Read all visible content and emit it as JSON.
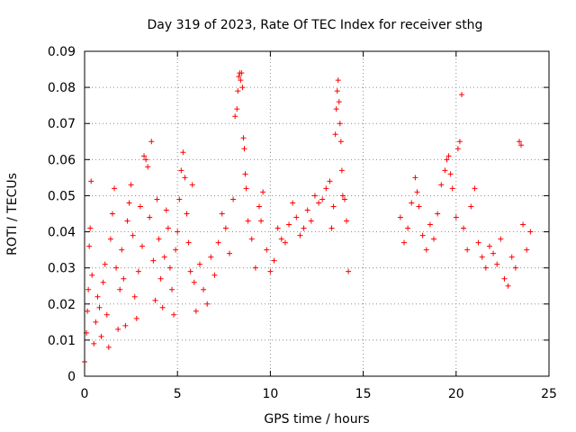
{
  "chart_data": {
    "type": "scatter",
    "title": "Day 319 of 2023, Rate Of TEC Index for receiver sthg",
    "xlabel": "GPS time / hours",
    "ylabel": "ROTI / TECUs",
    "xlim": [
      0,
      25
    ],
    "ylim": [
      0,
      0.09
    ],
    "x_ticks": [
      0,
      5,
      10,
      15,
      20,
      25
    ],
    "x_tick_labels": [
      "0",
      "5",
      "10",
      "15",
      "20",
      "25"
    ],
    "y_ticks": [
      0,
      0.01,
      0.02,
      0.03,
      0.04,
      0.05,
      0.06,
      0.07,
      0.08,
      0.09
    ],
    "y_tick_labels": [
      "0",
      "0.01",
      "0.02",
      "0.03",
      "0.04",
      "0.05",
      "0.06",
      "0.07",
      "0.08",
      "0.09"
    ],
    "grid": true,
    "marker": "+",
    "marker_color": "#ff0000",
    "series": [
      {
        "name": "ROTI",
        "points": [
          [
            0.0,
            0.004
          ],
          [
            0.1,
            0.012
          ],
          [
            0.15,
            0.018
          ],
          [
            0.2,
            0.024
          ],
          [
            0.25,
            0.036
          ],
          [
            0.3,
            0.041
          ],
          [
            0.35,
            0.054
          ],
          [
            0.4,
            0.028
          ],
          [
            0.5,
            0.009
          ],
          [
            0.6,
            0.015
          ],
          [
            0.7,
            0.022
          ],
          [
            0.8,
            0.019
          ],
          [
            0.9,
            0.011
          ],
          [
            1.0,
            0.026
          ],
          [
            1.1,
            0.031
          ],
          [
            1.2,
            0.017
          ],
          [
            1.3,
            0.008
          ],
          [
            1.4,
            0.038
          ],
          [
            1.5,
            0.045
          ],
          [
            1.6,
            0.052
          ],
          [
            1.7,
            0.03
          ],
          [
            1.8,
            0.013
          ],
          [
            1.9,
            0.024
          ],
          [
            2.0,
            0.035
          ],
          [
            2.1,
            0.027
          ],
          [
            2.2,
            0.014
          ],
          [
            2.3,
            0.043
          ],
          [
            2.4,
            0.048
          ],
          [
            2.5,
            0.053
          ],
          [
            2.6,
            0.039
          ],
          [
            2.7,
            0.022
          ],
          [
            2.8,
            0.016
          ],
          [
            2.9,
            0.029
          ],
          [
            3.0,
            0.047
          ],
          [
            3.1,
            0.036
          ],
          [
            3.2,
            0.061
          ],
          [
            3.3,
            0.06
          ],
          [
            3.4,
            0.058
          ],
          [
            3.5,
            0.044
          ],
          [
            3.6,
            0.065
          ],
          [
            3.7,
            0.032
          ],
          [
            3.8,
            0.021
          ],
          [
            3.9,
            0.049
          ],
          [
            4.0,
            0.038
          ],
          [
            4.1,
            0.027
          ],
          [
            4.2,
            0.019
          ],
          [
            4.3,
            0.033
          ],
          [
            4.4,
            0.046
          ],
          [
            4.5,
            0.041
          ],
          [
            4.6,
            0.03
          ],
          [
            4.7,
            0.024
          ],
          [
            4.8,
            0.017
          ],
          [
            4.9,
            0.035
          ],
          [
            5.0,
            0.04
          ],
          [
            5.1,
            0.049
          ],
          [
            5.2,
            0.057
          ],
          [
            5.3,
            0.062
          ],
          [
            5.4,
            0.055
          ],
          [
            5.5,
            0.045
          ],
          [
            5.6,
            0.037
          ],
          [
            5.7,
            0.029
          ],
          [
            5.8,
            0.053
          ],
          [
            5.9,
            0.026
          ],
          [
            6.0,
            0.018
          ],
          [
            6.2,
            0.031
          ],
          [
            6.4,
            0.024
          ],
          [
            6.6,
            0.02
          ],
          [
            6.8,
            0.033
          ],
          [
            7.0,
            0.028
          ],
          [
            7.2,
            0.037
          ],
          [
            7.4,
            0.045
          ],
          [
            7.6,
            0.041
          ],
          [
            7.8,
            0.034
          ],
          [
            8.0,
            0.049
          ],
          [
            8.1,
            0.072
          ],
          [
            8.2,
            0.074
          ],
          [
            8.25,
            0.079
          ],
          [
            8.3,
            0.083
          ],
          [
            8.35,
            0.084
          ],
          [
            8.4,
            0.082
          ],
          [
            8.45,
            0.084
          ],
          [
            8.5,
            0.08
          ],
          [
            8.55,
            0.066
          ],
          [
            8.6,
            0.063
          ],
          [
            8.65,
            0.056
          ],
          [
            8.7,
            0.052
          ],
          [
            8.8,
            0.043
          ],
          [
            9.0,
            0.038
          ],
          [
            9.2,
            0.03
          ],
          [
            9.4,
            0.047
          ],
          [
            9.5,
            0.043
          ],
          [
            9.6,
            0.051
          ],
          [
            9.8,
            0.035
          ],
          [
            10.0,
            0.029
          ],
          [
            10.2,
            0.032
          ],
          [
            10.4,
            0.041
          ],
          [
            10.6,
            0.038
          ],
          [
            10.8,
            0.037
          ],
          [
            11.0,
            0.042
          ],
          [
            11.2,
            0.048
          ],
          [
            11.4,
            0.044
          ],
          [
            11.6,
            0.039
          ],
          [
            11.8,
            0.041
          ],
          [
            12.0,
            0.046
          ],
          [
            12.2,
            0.043
          ],
          [
            12.4,
            0.05
          ],
          [
            12.6,
            0.048
          ],
          [
            12.8,
            0.049
          ],
          [
            13.0,
            0.052
          ],
          [
            13.2,
            0.054
          ],
          [
            13.3,
            0.041
          ],
          [
            13.4,
            0.047
          ],
          [
            13.5,
            0.067
          ],
          [
            13.55,
            0.074
          ],
          [
            13.6,
            0.079
          ],
          [
            13.65,
            0.082
          ],
          [
            13.7,
            0.076
          ],
          [
            13.75,
            0.07
          ],
          [
            13.8,
            0.065
          ],
          [
            13.85,
            0.057
          ],
          [
            13.9,
            0.05
          ],
          [
            14.0,
            0.049
          ],
          [
            14.1,
            0.043
          ],
          [
            14.2,
            0.029
          ],
          [
            17.0,
            0.044
          ],
          [
            17.2,
            0.037
          ],
          [
            17.4,
            0.041
          ],
          [
            17.6,
            0.048
          ],
          [
            17.8,
            0.055
          ],
          [
            17.9,
            0.051
          ],
          [
            18.0,
            0.047
          ],
          [
            18.2,
            0.039
          ],
          [
            18.4,
            0.035
          ],
          [
            18.6,
            0.042
          ],
          [
            18.8,
            0.038
          ],
          [
            19.0,
            0.045
          ],
          [
            19.2,
            0.053
          ],
          [
            19.4,
            0.057
          ],
          [
            19.5,
            0.06
          ],
          [
            19.6,
            0.061
          ],
          [
            19.7,
            0.056
          ],
          [
            19.8,
            0.052
          ],
          [
            20.0,
            0.044
          ],
          [
            20.1,
            0.063
          ],
          [
            20.2,
            0.065
          ],
          [
            20.3,
            0.078
          ],
          [
            20.4,
            0.041
          ],
          [
            20.6,
            0.035
          ],
          [
            20.8,
            0.047
          ],
          [
            21.0,
            0.052
          ],
          [
            21.2,
            0.037
          ],
          [
            21.4,
            0.033
          ],
          [
            21.6,
            0.03
          ],
          [
            21.8,
            0.036
          ],
          [
            22.0,
            0.034
          ],
          [
            22.2,
            0.031
          ],
          [
            22.4,
            0.038
          ],
          [
            22.6,
            0.027
          ],
          [
            22.8,
            0.025
          ],
          [
            23.0,
            0.033
          ],
          [
            23.2,
            0.03
          ],
          [
            23.4,
            0.065
          ],
          [
            23.5,
            0.064
          ],
          [
            23.6,
            0.042
          ],
          [
            23.8,
            0.035
          ],
          [
            24.0,
            0.04
          ]
        ]
      }
    ]
  }
}
